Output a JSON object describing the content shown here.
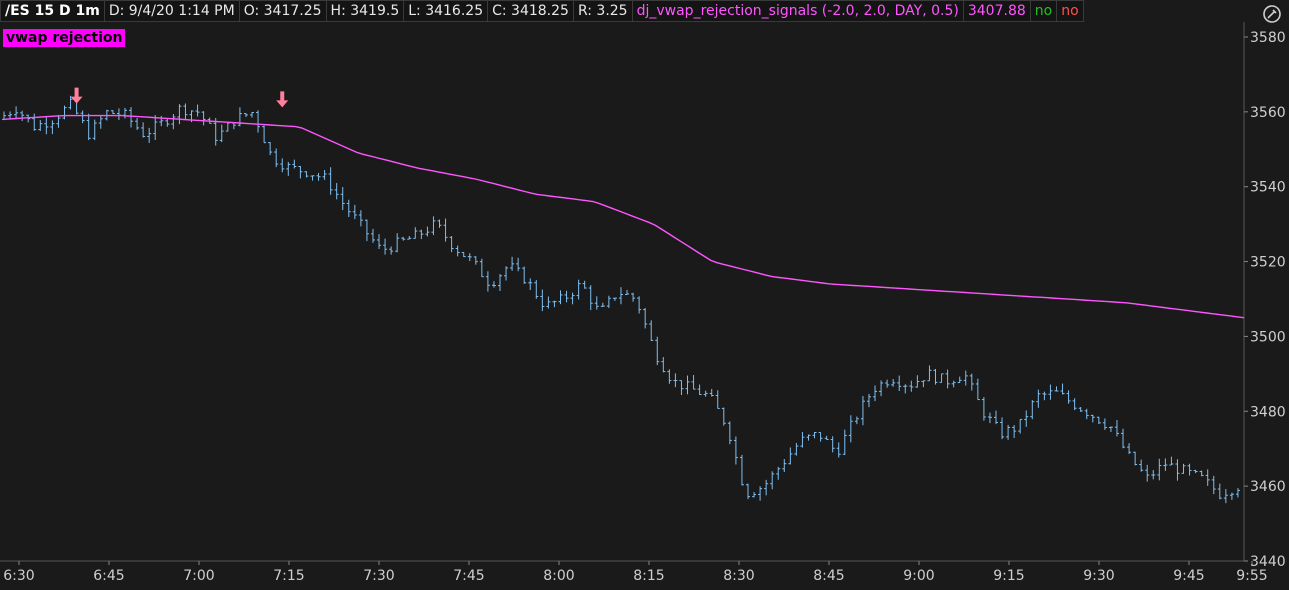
{
  "header": {
    "symbol": "/ES 15 D 1m",
    "date": "D: 9/4/20 1:14 PM",
    "open": "O: 3417.25",
    "high": "H: 3419.5",
    "low": "L: 3416.25",
    "close": "C: 3418.25",
    "range": "R: 3.25",
    "study": "dj_vwap_rejection_signals (-2.0, 2.0, DAY, 0.5)",
    "study_value": "3407.88",
    "flag1": "no",
    "flag2": "no"
  },
  "label": "vwap rejection",
  "chart_data": {
    "type": "ohlc",
    "x_ticks": [
      "6:30",
      "6:45",
      "7:00",
      "7:15",
      "7:30",
      "7:45",
      "8:00",
      "8:15",
      "8:30",
      "8:45",
      "9:00",
      "9:15",
      "9:30",
      "9:45",
      "9:55"
    ],
    "y_ticks": [
      3440,
      3460,
      3480,
      3500,
      3520,
      3540,
      3560,
      3580
    ],
    "ylim": [
      3440,
      3584
    ],
    "bar_color": "#7fbff0",
    "vwap_color": "#ff55ff",
    "close_path": [
      3558,
      3561,
      3556,
      3558,
      3562,
      3554,
      3560,
      3559,
      3554,
      3557,
      3561,
      3560,
      3553,
      3558,
      3560,
      3548,
      3545,
      3544,
      3542,
      3535,
      3529,
      3523,
      3525,
      3527,
      3530,
      3524,
      3520,
      3514,
      3519,
      3515,
      3508,
      3510,
      3514,
      3506,
      3512,
      3510,
      3496,
      3488,
      3486,
      3484,
      3476,
      3458,
      3460,
      3466,
      3472,
      3474,
      3469,
      3478,
      3486,
      3489,
      3487,
      3490,
      3488,
      3490,
      3480,
      3474,
      3476,
      3484,
      3485,
      3482,
      3479,
      3476,
      3468,
      3462,
      3466,
      3464,
      3462,
      3458,
      3460
    ],
    "close_path_note": "",
    "vwap_path": [
      3558,
      3559,
      3559,
      3558,
      3557,
      3556,
      3549,
      3545,
      3542,
      3538,
      3536,
      3530,
      3520,
      3516,
      3514,
      3513,
      3512,
      3511,
      3510,
      3509,
      3507,
      3505
    ],
    "signals": [
      {
        "time_index": 12,
        "price": 3559,
        "type": "down-arrow"
      },
      {
        "time_index": 46,
        "price": 3558,
        "type": "down-arrow"
      }
    ]
  }
}
